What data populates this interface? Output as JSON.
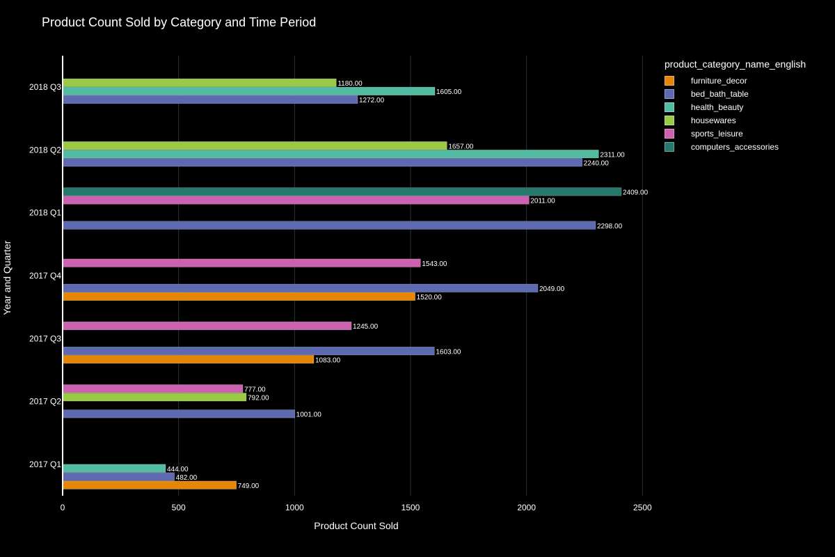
{
  "chart_data": {
    "type": "bar",
    "orientation": "horizontal",
    "title": "Product Count Sold by Category and Time Period",
    "xlabel": "Product Count Sold",
    "ylabel": "Year and Quarter",
    "xlim": [
      0,
      2550
    ],
    "xticks": [
      0,
      500,
      1000,
      1500,
      2000,
      2500
    ],
    "grid": true,
    "legend_title": "product_category_name_english",
    "legend_placement": "top-right",
    "categories": [
      "2017 Q1",
      "2017 Q2",
      "2017 Q3",
      "2017 Q4",
      "2018 Q1",
      "2018 Q2",
      "2018 Q3"
    ],
    "series": [
      {
        "name": "furniture_decor",
        "color": "#e58606",
        "values": [
          749,
          null,
          1083,
          1520,
          null,
          null,
          null
        ],
        "labels": [
          "749.00",
          "",
          "1083.00",
          "1520.00",
          "",
          "",
          ""
        ]
      },
      {
        "name": "bed_bath_table",
        "color": "#5d69b1",
        "values": [
          482,
          1001,
          1603,
          2049,
          2298,
          2240,
          1272
        ],
        "labels": [
          "482.00",
          "1001.00",
          "1603.00",
          "2049.00",
          "2298.00",
          "2240.00",
          "1272.00"
        ]
      },
      {
        "name": "health_beauty",
        "color": "#52bca3",
        "values": [
          444,
          null,
          null,
          null,
          null,
          2311,
          1605
        ],
        "labels": [
          "444.00",
          "",
          "",
          "",
          "",
          "2311.00",
          "1605.00"
        ]
      },
      {
        "name": "housewares",
        "color": "#99c945",
        "values": [
          null,
          792,
          null,
          null,
          null,
          1657,
          1180
        ],
        "labels": [
          "",
          "792.00",
          "",
          "",
          "",
          "1657.00",
          "1180.00"
        ]
      },
      {
        "name": "sports_leisure",
        "color": "#cc61b0",
        "values": [
          null,
          777,
          1245,
          1543,
          2011,
          null,
          null
        ],
        "labels": [
          "",
          "777.00",
          "1245.00",
          "1543.00",
          "2011.00",
          "",
          ""
        ]
      },
      {
        "name": "computers_accessories",
        "color": "#24796c",
        "values": [
          null,
          null,
          null,
          null,
          2409,
          null,
          null
        ],
        "labels": [
          "",
          "",
          "",
          "",
          "2409.00",
          "",
          ""
        ]
      }
    ]
  }
}
